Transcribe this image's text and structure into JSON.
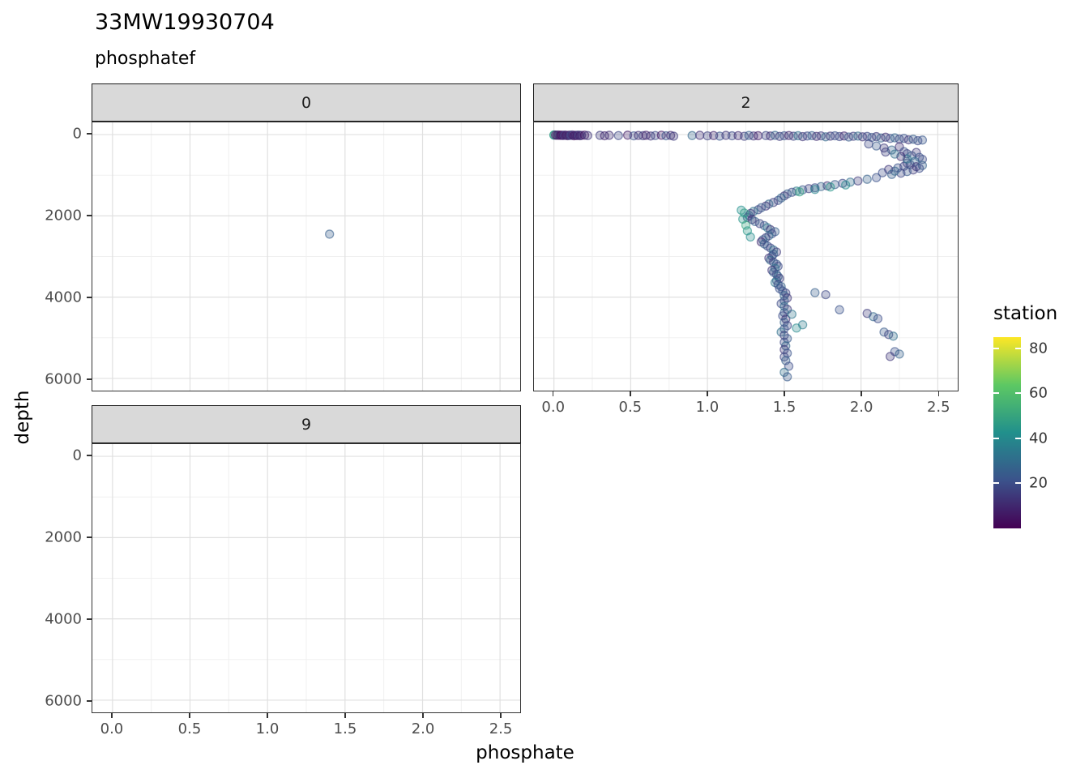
{
  "page": {
    "title": "33MW19930704",
    "subtitle": "phosphatef"
  },
  "legend": {
    "title": "station",
    "ticks": [
      80,
      60,
      40,
      20
    ],
    "domain": [
      0,
      85
    ],
    "colors": [
      "#440154",
      "#3B528B",
      "#21908C",
      "#5DC863",
      "#FDE725"
    ]
  },
  "chart_data": {
    "type": "scatter",
    "title": "33MW19930704",
    "subtitle": "phosphatef",
    "facet_by": "phosphatef",
    "xlabel": "phosphate",
    "ylabel": "depth",
    "color_by": "station",
    "x_ticks": [
      0,
      0.5,
      1,
      1.5,
      2,
      2.5
    ],
    "x_tick_labels": [
      "0.0",
      "0.5",
      "1.0",
      "1.5",
      "2.0",
      "2.5"
    ],
    "y_ticks": [
      0,
      2000,
      4000,
      6000
    ],
    "y_tick_labels": [
      "0",
      "2000",
      "4000",
      "6000"
    ],
    "x_range": [
      -0.13,
      2.63
    ],
    "y_range": [
      -300,
      6300
    ],
    "y_reversed": true,
    "grid": true,
    "point_alpha": 0.3,
    "facets": [
      {
        "label": "0",
        "points": [
          [
            1.4,
            2450,
            25
          ]
        ]
      },
      {
        "label": "2",
        "points": [
          [
            0.0,
            10,
            50
          ],
          [
            0.0,
            15,
            45
          ],
          [
            0.01,
            12,
            8
          ],
          [
            0.02,
            18,
            4
          ],
          [
            0.03,
            10,
            12
          ],
          [
            0.04,
            22,
            6
          ],
          [
            0.05,
            15,
            3
          ],
          [
            0.06,
            25,
            9
          ],
          [
            0.07,
            12,
            15
          ],
          [
            0.08,
            20,
            5
          ],
          [
            0.09,
            28,
            11
          ],
          [
            0.1,
            15,
            7
          ],
          [
            0.11,
            22,
            18
          ],
          [
            0.12,
            10,
            13
          ],
          [
            0.13,
            30,
            4
          ],
          [
            0.14,
            18,
            10
          ],
          [
            0.15,
            25,
            6
          ],
          [
            0.16,
            12,
            16
          ],
          [
            0.17,
            28,
            8
          ],
          [
            0.18,
            20,
            12
          ],
          [
            0.2,
            15,
            5
          ],
          [
            0.22,
            25,
            14
          ],
          [
            0.3,
            20,
            15
          ],
          [
            0.33,
            30,
            9
          ],
          [
            0.36,
            18,
            12
          ],
          [
            0.42,
            25,
            18
          ],
          [
            0.48,
            15,
            7
          ],
          [
            0.52,
            32,
            21
          ],
          [
            0.55,
            22,
            11
          ],
          [
            0.58,
            28,
            16
          ],
          [
            0.6,
            18,
            8
          ],
          [
            0.63,
            35,
            13
          ],
          [
            0.66,
            24,
            19
          ],
          [
            0.7,
            16,
            6
          ],
          [
            0.73,
            30,
            23
          ],
          [
            0.76,
            22,
            10
          ],
          [
            0.78,
            40,
            15
          ],
          [
            0.9,
            25,
            28
          ],
          [
            0.95,
            18,
            12
          ],
          [
            1.0,
            32,
            17
          ],
          [
            1.04,
            24,
            9
          ],
          [
            1.08,
            38,
            22
          ],
          [
            1.12,
            20,
            14
          ],
          [
            1.16,
            30,
            19
          ],
          [
            1.2,
            26,
            11
          ],
          [
            1.24,
            42,
            16
          ],
          [
            1.27,
            22,
            25
          ],
          [
            1.3,
            34,
            13
          ],
          [
            1.33,
            28,
            8
          ],
          [
            1.38,
            25,
            18
          ],
          [
            1.41,
            35,
            12
          ],
          [
            1.44,
            20,
            27
          ],
          [
            1.47,
            45,
            15
          ],
          [
            1.5,
            30,
            22
          ],
          [
            1.53,
            24,
            9
          ],
          [
            1.56,
            40,
            17
          ],
          [
            1.59,
            28,
            31
          ],
          [
            1.62,
            50,
            13
          ],
          [
            1.65,
            35,
            20
          ],
          [
            1.68,
            26,
            25
          ],
          [
            1.71,
            44,
            11
          ],
          [
            1.74,
            32,
            16
          ],
          [
            1.77,
            55,
            28
          ],
          [
            1.8,
            38,
            14
          ],
          [
            1.83,
            30,
            21
          ],
          [
            1.86,
            48,
            18
          ],
          [
            1.89,
            34,
            10
          ],
          [
            1.92,
            60,
            24
          ],
          [
            1.95,
            42,
            16
          ],
          [
            1.98,
            36,
            29
          ],
          [
            2.01,
            55,
            13
          ],
          [
            2.04,
            45,
            19
          ],
          [
            2.07,
            70,
            23
          ],
          [
            2.1,
            50,
            15
          ],
          [
            2.13,
            85,
            26
          ],
          [
            2.16,
            65,
            12
          ],
          [
            2.19,
            95,
            20
          ],
          [
            2.22,
            80,
            28
          ],
          [
            2.25,
            110,
            17
          ],
          [
            2.28,
            95,
            22
          ],
          [
            2.31,
            130,
            14
          ],
          [
            2.34,
            115,
            25
          ],
          [
            2.37,
            150,
            19
          ],
          [
            2.4,
            135,
            23
          ],
          [
            2.05,
            230,
            18
          ],
          [
            2.1,
            280,
            24
          ],
          [
            2.15,
            330,
            15
          ],
          [
            2.2,
            380,
            27
          ],
          [
            2.25,
            300,
            12
          ],
          [
            2.28,
            420,
            21
          ],
          [
            2.3,
            470,
            17
          ],
          [
            2.33,
            520,
            25
          ],
          [
            2.36,
            440,
            14
          ],
          [
            2.38,
            560,
            22
          ],
          [
            2.4,
            610,
            19
          ],
          [
            2.35,
            660,
            28
          ],
          [
            2.3,
            700,
            16
          ],
          [
            2.32,
            740,
            23
          ],
          [
            2.36,
            790,
            13
          ],
          [
            2.4,
            760,
            26
          ],
          [
            2.38,
            830,
            20
          ],
          [
            2.34,
            870,
            15
          ],
          [
            2.3,
            910,
            24
          ],
          [
            2.26,
            950,
            18
          ],
          [
            2.22,
            900,
            29
          ],
          [
            2.18,
            860,
            14
          ],
          [
            2.24,
            820,
            22
          ],
          [
            2.28,
            780,
            17
          ],
          [
            2.2,
            980,
            25
          ],
          [
            2.14,
            940,
            20
          ],
          [
            2.3,
            600,
            33
          ],
          [
            2.26,
            540,
            11
          ],
          [
            2.22,
            480,
            30
          ],
          [
            2.16,
            430,
            16
          ],
          [
            2.1,
            1060,
            21
          ],
          [
            2.04,
            1100,
            26
          ],
          [
            1.98,
            1140,
            15
          ],
          [
            1.93,
            1170,
            30
          ],
          [
            1.88,
            1200,
            18
          ],
          [
            1.83,
            1230,
            24
          ],
          [
            1.78,
            1260,
            12
          ],
          [
            1.74,
            1280,
            27
          ],
          [
            1.7,
            1310,
            20
          ],
          [
            1.66,
            1330,
            16
          ],
          [
            1.62,
            1360,
            23
          ],
          [
            1.58,
            1390,
            34
          ],
          [
            1.55,
            1420,
            19
          ],
          [
            1.52,
            1460,
            25
          ],
          [
            1.5,
            1510,
            14
          ],
          [
            1.48,
            1560,
            28
          ],
          [
            1.9,
            1240,
            40
          ],
          [
            1.8,
            1290,
            44
          ],
          [
            1.7,
            1350,
            38
          ],
          [
            1.6,
            1410,
            48
          ],
          [
            1.46,
            1620,
            22
          ],
          [
            1.43,
            1670,
            16
          ],
          [
            1.4,
            1710,
            28
          ],
          [
            1.38,
            1760,
            13
          ],
          [
            1.35,
            1800,
            24
          ],
          [
            1.33,
            1850,
            19
          ],
          [
            1.3,
            1890,
            31
          ],
          [
            1.28,
            1940,
            15
          ],
          [
            1.27,
            1990,
            26
          ],
          [
            1.26,
            2040,
            21
          ],
          [
            1.29,
            2090,
            12
          ],
          [
            1.31,
            2140,
            27
          ],
          [
            1.34,
            2190,
            17
          ],
          [
            1.37,
            2240,
            23
          ],
          [
            1.39,
            2290,
            33
          ],
          [
            1.41,
            2340,
            14
          ],
          [
            1.44,
            2390,
            25
          ],
          [
            1.42,
            2440,
            20
          ],
          [
            1.4,
            2490,
            29
          ],
          [
            1.38,
            2540,
            16
          ],
          [
            1.36,
            2590,
            24
          ],
          [
            1.35,
            2640,
            11
          ],
          [
            1.37,
            2690,
            27
          ],
          [
            1.39,
            2740,
            22
          ],
          [
            1.41,
            2790,
            18
          ],
          [
            1.43,
            2840,
            30
          ],
          [
            1.45,
            2890,
            15
          ],
          [
            1.43,
            2940,
            26
          ],
          [
            1.42,
            2990,
            21
          ],
          [
            1.4,
            3040,
            13
          ],
          [
            1.41,
            3090,
            28
          ],
          [
            1.43,
            3140,
            17
          ],
          [
            1.45,
            3190,
            24
          ],
          [
            1.46,
            3240,
            19
          ],
          [
            1.44,
            3290,
            32
          ],
          [
            1.42,
            3340,
            14
          ],
          [
            1.43,
            3390,
            25
          ],
          [
            1.45,
            3440,
            20
          ],
          [
            1.46,
            3490,
            27
          ],
          [
            1.47,
            3540,
            16
          ],
          [
            1.45,
            3590,
            23
          ],
          [
            1.44,
            3640,
            34
          ],
          [
            1.46,
            3690,
            18
          ],
          [
            1.48,
            3740,
            26
          ],
          [
            1.47,
            3790,
            21
          ],
          [
            1.22,
            1860,
            42
          ],
          [
            1.24,
            1930,
            47
          ],
          [
            1.23,
            2080,
            44
          ],
          [
            1.25,
            2230,
            50
          ],
          [
            1.26,
            2370,
            45
          ],
          [
            1.28,
            2520,
            41
          ],
          [
            1.49,
            3850,
            22
          ],
          [
            1.51,
            3900,
            17
          ],
          [
            1.5,
            3960,
            27
          ],
          [
            1.52,
            4020,
            14
          ],
          [
            1.5,
            4090,
            24
          ],
          [
            1.48,
            4160,
            19
          ],
          [
            1.5,
            4230,
            29
          ],
          [
            1.52,
            4300,
            15
          ],
          [
            1.5,
            4380,
            25
          ],
          [
            1.49,
            4460,
            20
          ],
          [
            1.51,
            4540,
            12
          ],
          [
            1.5,
            4620,
            26
          ],
          [
            1.52,
            4700,
            18
          ],
          [
            1.5,
            4780,
            23
          ],
          [
            1.48,
            4860,
            31
          ],
          [
            1.5,
            4940,
            16
          ],
          [
            1.52,
            5020,
            24
          ],
          [
            1.5,
            5110,
            19
          ],
          [
            1.51,
            5200,
            28
          ],
          [
            1.5,
            5290,
            14
          ],
          [
            1.52,
            5380,
            22
          ],
          [
            1.5,
            5470,
            17
          ],
          [
            1.51,
            5560,
            25
          ],
          [
            1.53,
            5700,
            20
          ],
          [
            1.5,
            5850,
            30
          ],
          [
            1.52,
            5960,
            24
          ],
          [
            1.7,
            3890,
            25
          ],
          [
            1.77,
            3940,
            18
          ],
          [
            1.86,
            4310,
            22
          ],
          [
            2.04,
            4400,
            15
          ],
          [
            2.08,
            4480,
            28
          ],
          [
            2.11,
            4530,
            20
          ],
          [
            2.15,
            4860,
            24
          ],
          [
            2.18,
            4920,
            17
          ],
          [
            2.21,
            4960,
            30
          ],
          [
            2.22,
            5340,
            21
          ],
          [
            2.25,
            5400,
            26
          ],
          [
            2.19,
            5460,
            14
          ],
          [
            1.62,
            4680,
            35
          ],
          [
            1.58,
            4760,
            40
          ],
          [
            1.55,
            4420,
            33
          ]
        ]
      },
      {
        "label": "9",
        "points": []
      }
    ]
  }
}
